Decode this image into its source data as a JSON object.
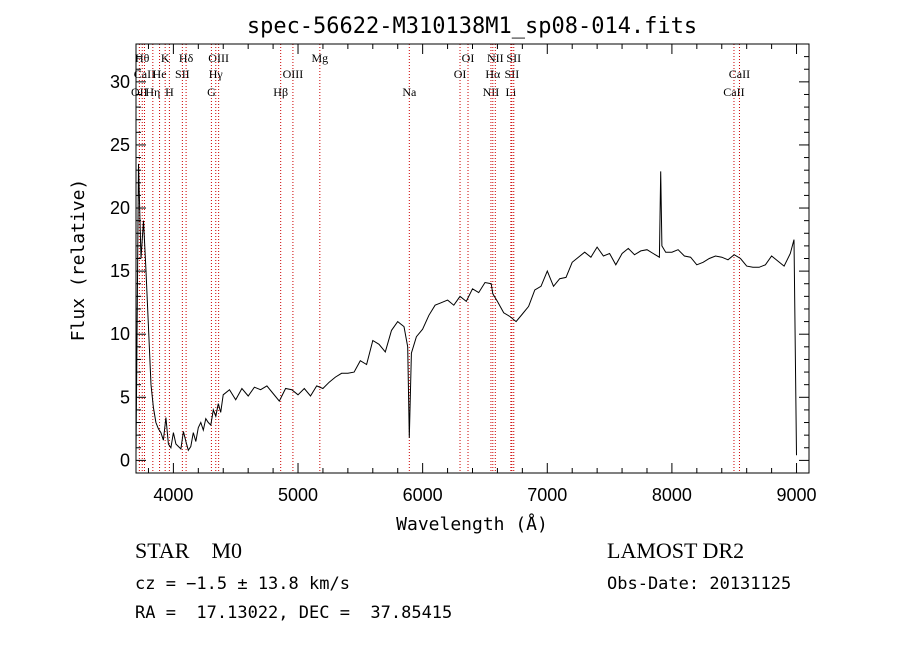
{
  "chart_data": {
    "type": "line",
    "title": "spec-56622-M310138M1_sp08-014.fits",
    "xlabel": "Wavelength (Å)",
    "ylabel": "Flux (relative)",
    "xlim": [
      3700,
      9100
    ],
    "ylim": [
      -1,
      33
    ],
    "x_ticks": [
      4000,
      5000,
      6000,
      7000,
      8000,
      9000
    ],
    "y_ticks": [
      0,
      5,
      10,
      15,
      20,
      25,
      30
    ],
    "grid": false,
    "line_color": "#000000",
    "marker_color": "#cc0000",
    "line_markers": [
      {
        "label": "OII",
        "wave": 3727,
        "row": 3
      },
      {
        "label": "Hθ",
        "wave": 3750,
        "row": 1
      },
      {
        "label": "CaII",
        "wave": 3768,
        "row": 2
      },
      {
        "label": "Hη",
        "wave": 3835,
        "row": 3
      },
      {
        "label": "He",
        "wave": 3889,
        "row": 2
      },
      {
        "label": "K",
        "wave": 3934,
        "row": 1
      },
      {
        "label": "H",
        "wave": 3968,
        "row": 3
      },
      {
        "label": "SII",
        "wave": 4072,
        "row": 2
      },
      {
        "label": "Hδ",
        "wave": 4102,
        "row": 1
      },
      {
        "label": "G",
        "wave": 4305,
        "row": 3
      },
      {
        "label": "OIII",
        "wave": 4363,
        "row": 1
      },
      {
        "label": "Hγ",
        "wave": 4340,
        "row": 2
      },
      {
        "label": "Hβ",
        "wave": 4861,
        "row": 3
      },
      {
        "label": "OIII",
        "wave": 4959,
        "row": 2
      },
      {
        "label": "Mg",
        "wave": 5175,
        "row": 1
      },
      {
        "label": "Na",
        "wave": 5893,
        "row": 3
      },
      {
        "label": "OI",
        "wave": 6300,
        "row": 2
      },
      {
        "label": "OI",
        "wave": 6364,
        "row": 1
      },
      {
        "label": "NII",
        "wave": 6548,
        "row": 3
      },
      {
        "label": "Hα",
        "wave": 6563,
        "row": 2
      },
      {
        "label": "NII",
        "wave": 6583,
        "row": 1
      },
      {
        "label": "Li",
        "wave": 6708,
        "row": 3
      },
      {
        "label": "SII",
        "wave": 6716,
        "row": 2
      },
      {
        "label": "SII",
        "wave": 6731,
        "row": 1
      },
      {
        "label": "CaII",
        "wave": 8498,
        "row": 3
      },
      {
        "label": "CaII",
        "wave": 8542,
        "row": 2
      }
    ],
    "series": [
      {
        "x": [
          3700,
          3720,
          3740,
          3760,
          3780,
          3800,
          3820,
          3840,
          3860,
          3880,
          3900,
          3920,
          3940,
          3960,
          3980,
          4000,
          4020,
          4040,
          4060,
          4080,
          4100,
          4120,
          4140,
          4160,
          4180,
          4200,
          4220,
          4240,
          4260,
          4280,
          4300,
          4320,
          4340,
          4360,
          4380,
          4400,
          4450,
          4500,
          4550,
          4600,
          4650,
          4700,
          4750,
          4800,
          4850,
          4900,
          4950,
          5000,
          5050,
          5100,
          5150,
          5200,
          5250,
          5300,
          5350,
          5400,
          5450,
          5500,
          5550,
          5600,
          5650,
          5700,
          5750,
          5800,
          5850,
          5880,
          5893,
          5910,
          5950,
          6000,
          6050,
          6100,
          6150,
          6200,
          6250,
          6300,
          6350,
          6400,
          6450,
          6500,
          6550,
          6563,
          6600,
          6650,
          6700,
          6750,
          6800,
          6850,
          6900,
          6950,
          7000,
          7050,
          7100,
          7150,
          7200,
          7250,
          7300,
          7350,
          7400,
          7450,
          7500,
          7550,
          7600,
          7650,
          7700,
          7750,
          7800,
          7850,
          7900,
          7910,
          7920,
          7950,
          8000,
          8050,
          8100,
          8150,
          8200,
          8250,
          8300,
          8350,
          8400,
          8450,
          8500,
          8550,
          8600,
          8650,
          8700,
          8750,
          8800,
          8850,
          8900,
          8950,
          8980,
          9000
        ],
        "y": [
          0.5,
          23.5,
          16,
          19,
          15,
          10.5,
          6,
          4.2,
          3,
          2.5,
          2.2,
          1.6,
          3.4,
          1.3,
          1.0,
          2.2,
          1.3,
          1.1,
          0.9,
          2.3,
          1.5,
          0.8,
          1.1,
          2.2,
          1.5,
          2.6,
          3.0,
          2.4,
          3.3,
          3.0,
          2.8,
          4.0,
          3.5,
          4.5,
          3.8,
          5.2,
          5.6,
          4.8,
          5.7,
          5.1,
          5.8,
          5.6,
          5.9,
          5.3,
          4.7,
          5.7,
          5.6,
          5.2,
          5.7,
          5.1,
          5.9,
          5.7,
          6.2,
          6.6,
          6.9,
          6.9,
          7.0,
          7.9,
          7.6,
          9.5,
          9.2,
          8.6,
          10.3,
          11.0,
          10.6,
          9.0,
          1.8,
          8.5,
          9.8,
          10.4,
          11.5,
          12.3,
          12.5,
          12.7,
          12.3,
          13.0,
          12.6,
          13.6,
          13.3,
          14.1,
          14.0,
          13.2,
          12.6,
          11.7,
          11.4,
          11.0,
          11.6,
          12.2,
          13.5,
          13.8,
          15.0,
          13.8,
          14.4,
          14.5,
          15.7,
          16.1,
          16.5,
          16.1,
          16.9,
          16.2,
          16.4,
          15.5,
          16.4,
          16.8,
          16.3,
          16.6,
          16.7,
          16.4,
          16.1,
          22.9,
          17.0,
          16.5,
          16.5,
          16.7,
          16.2,
          16.1,
          15.5,
          15.7,
          16.0,
          16.2,
          16.1,
          15.9,
          16.3,
          16.0,
          15.4,
          15.3,
          15.3,
          15.5,
          16.2,
          15.8,
          15.4,
          16.4,
          17.5,
          0.4
        ]
      }
    ]
  },
  "info": {
    "class_line": "STAR    M0",
    "cz_line": "cz = −1.5 ± 13.8 km/s",
    "radec_line": "RA =  17.13022, DEC =  37.85415",
    "survey": "LAMOST DR2",
    "obs_date": "Obs-Date: 20131125"
  }
}
